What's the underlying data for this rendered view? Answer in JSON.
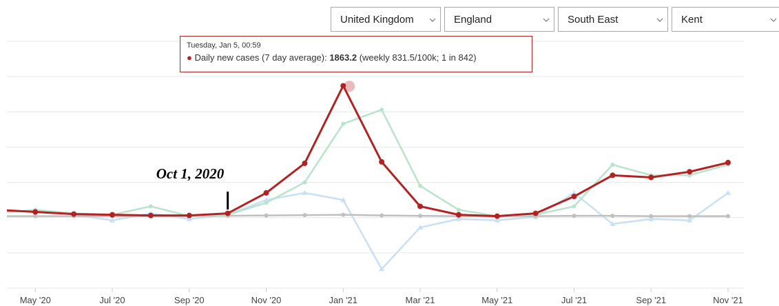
{
  "filters": [
    "United Kingdom",
    "England",
    "South East",
    "Kent"
  ],
  "chart_data": {
    "type": "line",
    "annotation": {
      "text": "Oct 1, 2020",
      "x": "2020-10"
    },
    "tooltip": {
      "date": "Tuesday, Jan 5, 00:59",
      "label": "Daily new cases (7 day average):",
      "value": 1863.2,
      "detail": "(weekly 831.5/100k; 1 in 842)"
    },
    "x": [
      "2020-04",
      "2020-05",
      "2020-06",
      "2020-07",
      "2020-08",
      "2020-09",
      "2020-10",
      "2020-11",
      "2020-12",
      "2021-01",
      "2021-02",
      "2021-03",
      "2021-04",
      "2021-05",
      "2021-06",
      "2021-07",
      "2021-08",
      "2021-09",
      "2021-10",
      "2021-11"
    ],
    "xlim": [
      "2020-04",
      "2021-11"
    ],
    "xticks": [
      {
        "value": "2020-05",
        "label": "May '20"
      },
      {
        "value": "2020-07",
        "label": "Jul '20"
      },
      {
        "value": "2020-09",
        "label": "Sep '20"
      },
      {
        "value": "2020-11",
        "label": "Nov '20"
      },
      {
        "value": "2021-01",
        "label": "Jan '21"
      },
      {
        "value": "2021-03",
        "label": "Mar '21"
      },
      {
        "value": "2021-05",
        "label": "May '21"
      },
      {
        "value": "2021-07",
        "label": "Jul '21"
      },
      {
        "value": "2021-09",
        "label": "Sep '21"
      },
      {
        "value": "2021-11",
        "label": "Nov '21"
      }
    ],
    "ylim": [
      -1000,
      2500
    ],
    "yticks": [
      -1000,
      -500,
      0,
      500,
      1000,
      1500,
      2000,
      2500
    ],
    "grid": true,
    "series": [
      {
        "color": "#c8e0f4",
        "marker": "triangle",
        "values": [
          60,
          110,
          40,
          -40,
          60,
          -20,
          40,
          250,
          350,
          250,
          -730,
          -140,
          -20,
          -40,
          10,
          350,
          -90,
          -20,
          -40,
          350
        ]
      },
      {
        "color": "#bfbfbf",
        "marker": "circle",
        "values": [
          20,
          20,
          20,
          20,
          20,
          20,
          25,
          30,
          35,
          40,
          30,
          25,
          20,
          20,
          20,
          25,
          25,
          20,
          20,
          20
        ]
      },
      {
        "color": "#b9e3cc",
        "marker": "circle",
        "values": [
          60,
          110,
          60,
          40,
          160,
          20,
          40,
          210,
          500,
          1330,
          1530,
          450,
          110,
          20,
          40,
          160,
          750,
          600,
          600,
          750
        ]
      },
      {
        "color": "#b22222",
        "marker": "circle",
        "values": [
          110,
          80,
          50,
          40,
          30,
          30,
          60,
          350,
          770,
          1870,
          790,
          160,
          40,
          20,
          60,
          300,
          600,
          570,
          650,
          780
        ]
      }
    ]
  }
}
